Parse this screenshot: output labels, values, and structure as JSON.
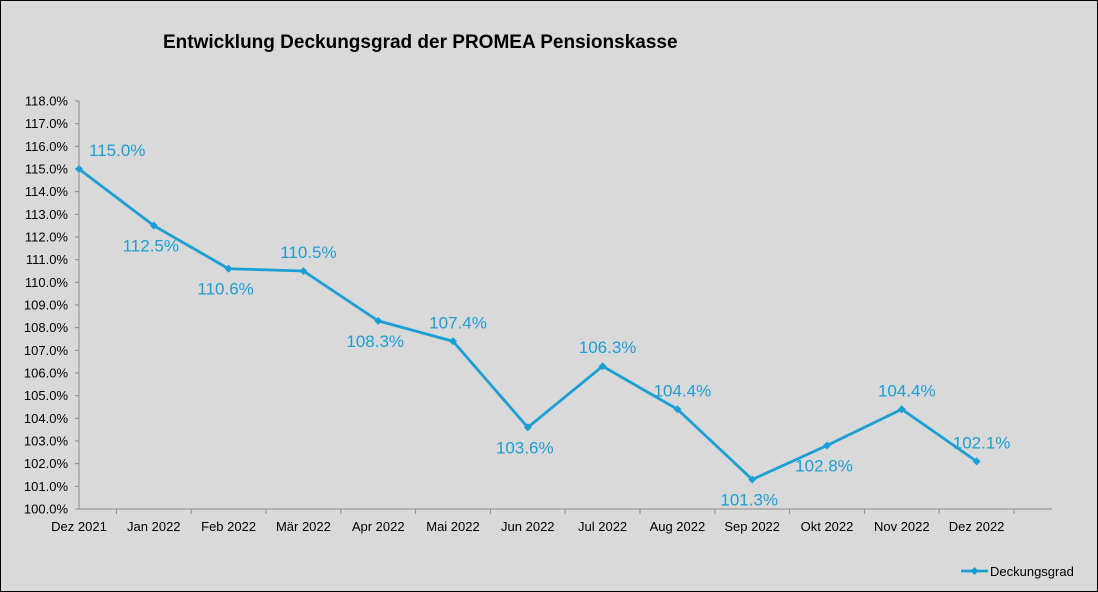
{
  "chart_data": {
    "type": "line",
    "title": "Entwicklung Deckungsgrad der PROMEA Pensionskasse",
    "xlabel": "",
    "ylabel": "",
    "categories": [
      "Dez 2021",
      "Jan 2022",
      "Feb 2022",
      "Mär 2022",
      "Apr 2022",
      "Mai 2022",
      "Jun 2022",
      "Jul 2022",
      "Aug 2022",
      "Sep 2022",
      "Okt 2022",
      "Nov 2022",
      "Dez 2022"
    ],
    "series": [
      {
        "name": "Deckungsgrad",
        "values": [
          115.0,
          112.5,
          110.6,
          110.5,
          108.3,
          107.4,
          103.6,
          106.3,
          104.4,
          101.3,
          102.8,
          104.4,
          102.1
        ],
        "labels": [
          "115.0%",
          "112.5%",
          "110.6%",
          "110.5%",
          "108.3%",
          "107.4%",
          "103.6%",
          "106.3%",
          "104.4%",
          "101.3%",
          "102.8%",
          "104.4%",
          "102.1%"
        ],
        "color": "#1a9fd4"
      }
    ],
    "ylim": [
      100,
      118
    ],
    "yticks": [
      "100.0%",
      "101.0%",
      "102.0%",
      "103.0%",
      "104.0%",
      "105.0%",
      "106.0%",
      "107.0%",
      "108.0%",
      "109.0%",
      "110.0%",
      "111.0%",
      "112.0%",
      "113.0%",
      "114.0%",
      "115.0%",
      "116.0%",
      "117.0%",
      "118.0%"
    ],
    "grid": false,
    "legend_position": "bottom-right"
  }
}
